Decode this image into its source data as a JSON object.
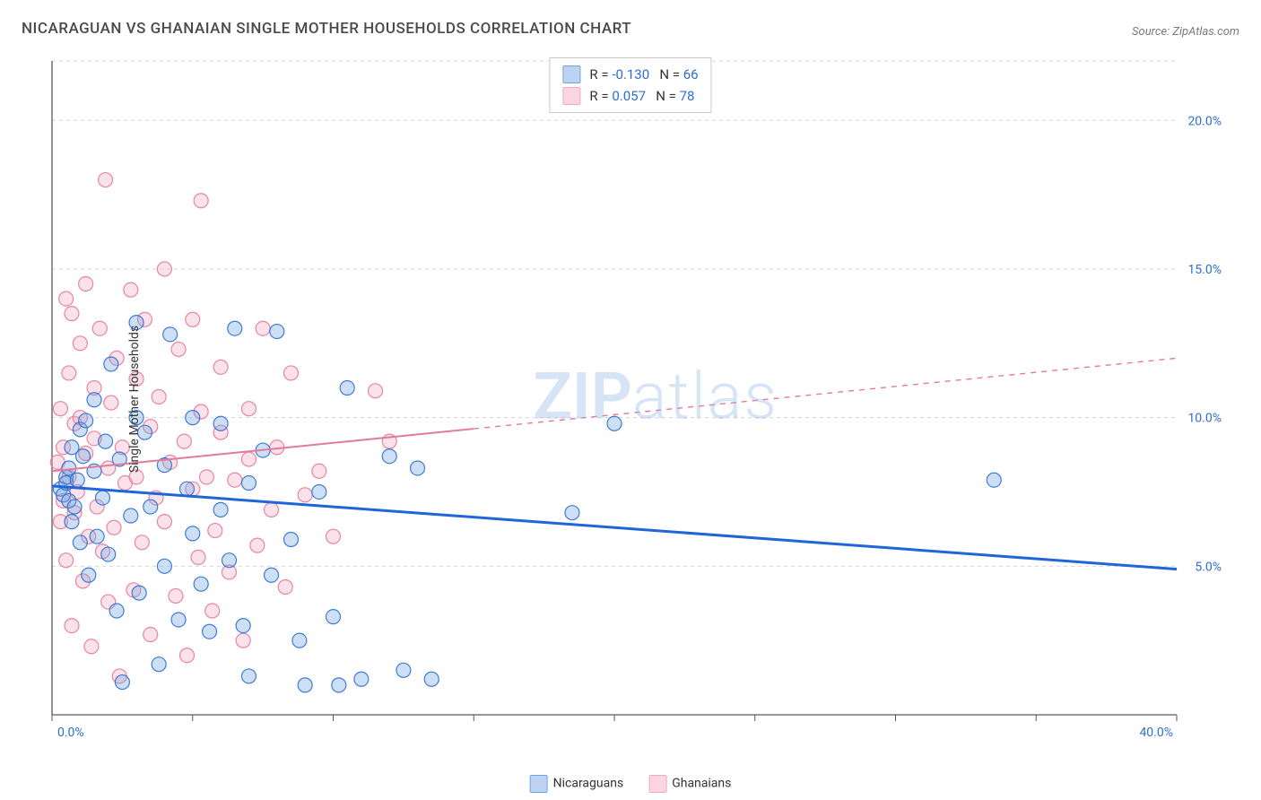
{
  "title": "NICARAGUAN VS GHANAIAN SINGLE MOTHER HOUSEHOLDS CORRELATION CHART",
  "source_label": "Source: ZipAtlas.com",
  "ylabel": "Single Mother Households",
  "watermark_a": "ZIP",
  "watermark_b": "atlas",
  "chart": {
    "type": "scatter-with-regression",
    "background_color": "#ffffff",
    "grid_color": "#d6d6d6",
    "grid_dash": "4 4",
    "axis_color": "#595959",
    "tick_label_color": "#2f6fd0",
    "tick_fontsize": 14,
    "xlim": [
      0,
      40
    ],
    "ylim": [
      0,
      22
    ],
    "x_ticks": [
      0,
      5,
      10,
      15,
      20,
      25,
      30,
      35,
      40
    ],
    "x_tick_labels": [
      "0.0%",
      "",
      "",
      "",
      "",
      "",
      "",
      "",
      "40.0%"
    ],
    "y_gridlines": [
      5,
      10,
      15,
      20
    ],
    "y_tick_labels": [
      "5.0%",
      "10.0%",
      "15.0%",
      "20.0%"
    ],
    "marker_radius": 8,
    "marker_fill_opacity": 0.35,
    "marker_stroke_opacity": 0.9,
    "series": [
      {
        "id": "nicaraguans",
        "label": "Nicaraguans",
        "color": "#6fa3e0",
        "stroke": "#2f6fd0",
        "trend": {
          "color": "#1f66d6",
          "width": 3,
          "dash_after_x": 40,
          "y_at_x0": 7.7,
          "y_at_xmax": 4.9
        },
        "R_label": "-0.130",
        "N_label": "66",
        "points": [
          [
            0.3,
            7.6
          ],
          [
            0.4,
            7.4
          ],
          [
            0.5,
            8.0
          ],
          [
            0.5,
            7.8
          ],
          [
            0.6,
            7.2
          ],
          [
            0.6,
            8.3
          ],
          [
            0.7,
            6.5
          ],
          [
            0.7,
            9.0
          ],
          [
            0.8,
            7.0
          ],
          [
            0.9,
            7.9
          ],
          [
            1.0,
            9.6
          ],
          [
            1.0,
            5.8
          ],
          [
            1.1,
            8.7
          ],
          [
            1.2,
            9.9
          ],
          [
            1.3,
            4.7
          ],
          [
            1.5,
            10.6
          ],
          [
            1.5,
            8.2
          ],
          [
            1.6,
            6.0
          ],
          [
            1.8,
            7.3
          ],
          [
            1.9,
            9.2
          ],
          [
            2.0,
            5.4
          ],
          [
            2.1,
            11.8
          ],
          [
            2.3,
            3.5
          ],
          [
            2.4,
            8.6
          ],
          [
            2.5,
            1.1
          ],
          [
            2.8,
            6.7
          ],
          [
            3.0,
            10.0
          ],
          [
            3.0,
            13.2
          ],
          [
            3.1,
            4.1
          ],
          [
            3.3,
            9.5
          ],
          [
            3.5,
            7.0
          ],
          [
            3.8,
            1.7
          ],
          [
            4.0,
            8.4
          ],
          [
            4.0,
            5.0
          ],
          [
            4.2,
            12.8
          ],
          [
            4.5,
            3.2
          ],
          [
            4.8,
            7.6
          ],
          [
            5.0,
            10.0
          ],
          [
            5.0,
            6.1
          ],
          [
            5.3,
            4.4
          ],
          [
            5.6,
            2.8
          ],
          [
            6.0,
            9.8
          ],
          [
            6.0,
            6.9
          ],
          [
            6.3,
            5.2
          ],
          [
            6.5,
            13.0
          ],
          [
            6.8,
            3.0
          ],
          [
            7.0,
            7.8
          ],
          [
            7.0,
            1.3
          ],
          [
            7.5,
            8.9
          ],
          [
            7.8,
            4.7
          ],
          [
            8.0,
            12.9
          ],
          [
            8.5,
            5.9
          ],
          [
            8.8,
            2.5
          ],
          [
            9.0,
            1.0
          ],
          [
            9.5,
            7.5
          ],
          [
            10.0,
            3.3
          ],
          [
            10.2,
            1.0
          ],
          [
            10.5,
            11.0
          ],
          [
            11.0,
            1.2
          ],
          [
            12.0,
            8.7
          ],
          [
            12.5,
            1.5
          ],
          [
            13.0,
            8.3
          ],
          [
            13.5,
            1.2
          ],
          [
            18.5,
            6.8
          ],
          [
            20.0,
            9.8
          ],
          [
            33.5,
            7.9
          ]
        ]
      },
      {
        "id": "ghanaians",
        "label": "Ghanaians",
        "color": "#f4a8bf",
        "stroke": "#e47a9b",
        "trend": {
          "color": "#e47a9b",
          "width": 2,
          "dash_after_x": 15,
          "y_at_x0": 8.2,
          "y_at_xmax": 12.0
        },
        "R_label": "0.057",
        "N_label": "78",
        "points": [
          [
            0.2,
            8.5
          ],
          [
            0.3,
            6.5
          ],
          [
            0.3,
            10.3
          ],
          [
            0.4,
            7.2
          ],
          [
            0.4,
            9.0
          ],
          [
            0.5,
            14.0
          ],
          [
            0.5,
            5.2
          ],
          [
            0.6,
            8.0
          ],
          [
            0.6,
            11.5
          ],
          [
            0.7,
            13.5
          ],
          [
            0.7,
            3.0
          ],
          [
            0.8,
            9.8
          ],
          [
            0.8,
            6.8
          ],
          [
            0.9,
            7.5
          ],
          [
            1.0,
            10.0
          ],
          [
            1.0,
            12.5
          ],
          [
            1.1,
            4.5
          ],
          [
            1.2,
            8.8
          ],
          [
            1.2,
            14.5
          ],
          [
            1.3,
            6.0
          ],
          [
            1.4,
            2.3
          ],
          [
            1.5,
            9.3
          ],
          [
            1.5,
            11.0
          ],
          [
            1.6,
            7.0
          ],
          [
            1.7,
            13.0
          ],
          [
            1.8,
            5.5
          ],
          [
            1.9,
            18.0
          ],
          [
            2.0,
            8.3
          ],
          [
            2.0,
            3.8
          ],
          [
            2.1,
            10.5
          ],
          [
            2.2,
            6.3
          ],
          [
            2.3,
            12.0
          ],
          [
            2.4,
            1.3
          ],
          [
            2.5,
            9.0
          ],
          [
            2.6,
            7.8
          ],
          [
            2.8,
            14.3
          ],
          [
            2.9,
            4.2
          ],
          [
            3.0,
            11.3
          ],
          [
            3.0,
            8.0
          ],
          [
            3.2,
            5.8
          ],
          [
            3.3,
            13.3
          ],
          [
            3.5,
            9.7
          ],
          [
            3.5,
            2.7
          ],
          [
            3.7,
            7.3
          ],
          [
            3.8,
            10.7
          ],
          [
            4.0,
            6.5
          ],
          [
            4.0,
            15.0
          ],
          [
            4.2,
            8.5
          ],
          [
            4.4,
            4.0
          ],
          [
            4.5,
            12.3
          ],
          [
            4.7,
            9.2
          ],
          [
            4.8,
            2.0
          ],
          [
            5.0,
            7.6
          ],
          [
            5.0,
            13.3
          ],
          [
            5.2,
            5.3
          ],
          [
            5.3,
            10.2
          ],
          [
            5.3,
            17.3
          ],
          [
            5.5,
            8.0
          ],
          [
            5.7,
            3.5
          ],
          [
            5.8,
            6.2
          ],
          [
            6.0,
            9.5
          ],
          [
            6.0,
            11.7
          ],
          [
            6.3,
            4.8
          ],
          [
            6.5,
            7.9
          ],
          [
            6.8,
            2.5
          ],
          [
            7.0,
            10.3
          ],
          [
            7.0,
            8.6
          ],
          [
            7.3,
            5.7
          ],
          [
            7.5,
            13.0
          ],
          [
            7.8,
            6.9
          ],
          [
            8.0,
            9.0
          ],
          [
            8.3,
            4.3
          ],
          [
            8.5,
            11.5
          ],
          [
            9.0,
            7.4
          ],
          [
            9.5,
            8.2
          ],
          [
            10.0,
            6.0
          ],
          [
            11.5,
            10.9
          ],
          [
            12.0,
            9.2
          ]
        ]
      }
    ],
    "legend_bottom": {
      "items": [
        {
          "label": "Nicaraguans",
          "fill": "#bcd4f2",
          "stroke": "#6fa3e0"
        },
        {
          "label": "Ghanaians",
          "fill": "#fbd5e1",
          "stroke": "#f4a8bf"
        }
      ]
    },
    "stats_legend": {
      "rows": [
        {
          "fill": "#bcd4f2",
          "stroke": "#6fa3e0",
          "R": "-0.130",
          "N": "66"
        },
        {
          "fill": "#fbd5e1",
          "stroke": "#f4a8bf",
          "R": "0.057",
          "N": "78"
        }
      ]
    }
  }
}
